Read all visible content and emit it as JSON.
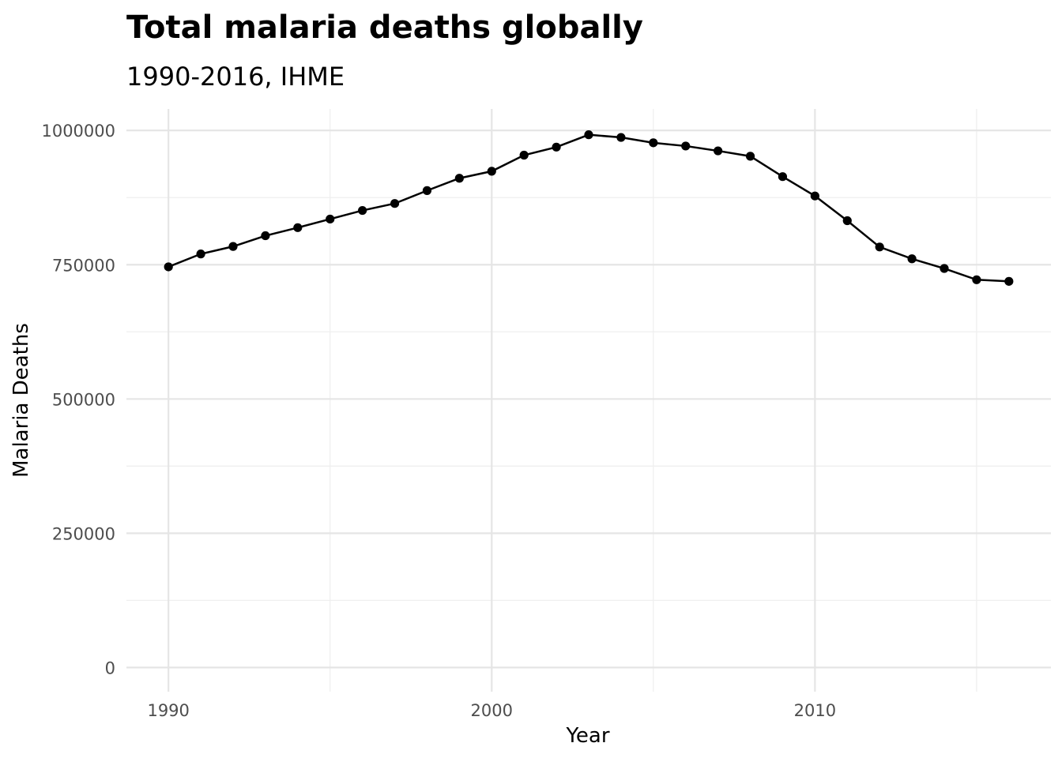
{
  "chart_data": {
    "type": "line",
    "title": "Total malaria deaths globally",
    "subtitle": "1990-2016, IHME",
    "xlabel": "Year",
    "ylabel": "Malaria Deaths",
    "xlim": [
      1988.7,
      2017.3
    ],
    "ylim": [
      -45000,
      1040000
    ],
    "x_ticks": [
      1990,
      2000,
      2010
    ],
    "y_ticks": [
      0,
      250000,
      500000,
      750000,
      1000000
    ],
    "grid": true,
    "legend": "none",
    "series": [
      {
        "color": "#000000",
        "x": [
          1990,
          1991,
          1992,
          1993,
          1994,
          1995,
          1996,
          1997,
          1998,
          1999,
          2000,
          2001,
          2002,
          2003,
          2004,
          2005,
          2006,
          2007,
          2008,
          2009,
          2010,
          2011,
          2012,
          2013,
          2014,
          2015,
          2016
        ],
        "y": [
          746000,
          770000,
          784000,
          804000,
          819000,
          835000,
          851000,
          864000,
          888000,
          911000,
          924000,
          954000,
          969000,
          992000,
          987000,
          977000,
          971000,
          962000,
          952000,
          914000,
          878000,
          832000,
          783000,
          761000,
          743000,
          722000,
          719000
        ]
      }
    ]
  }
}
